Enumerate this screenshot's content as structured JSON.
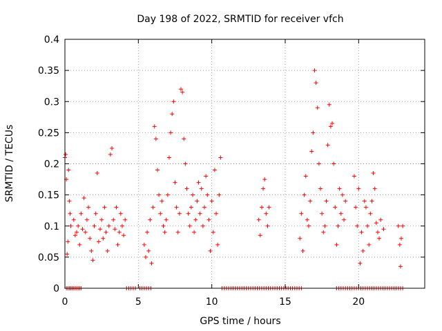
{
  "chart_data": {
    "type": "scatter",
    "title": "Day 198 of 2022, SRMTID for receiver vfch",
    "xlabel": "GPS time / hours",
    "ylabel": "SRMTID / TECUs",
    "xlim": [
      0,
      24.5
    ],
    "ylim": [
      0,
      0.4
    ],
    "x_ticks": [
      0,
      5,
      10,
      15,
      20
    ],
    "x_tick_labels": [
      "0",
      "5",
      "10",
      "15",
      "20"
    ],
    "y_ticks": [
      0,
      0.05,
      0.1,
      0.15,
      0.2,
      0.25,
      0.3,
      0.35,
      0.4
    ],
    "y_tick_labels": [
      "0",
      "0.05",
      "0.1",
      "0.15",
      "0.2",
      "0.25",
      "0.3",
      "0.35",
      "0.4"
    ],
    "grid": true,
    "marker": "+",
    "color": "#ff0000",
    "series": [
      {
        "name": "SRMTID",
        "points": [
          [
            0.0,
            0.21
          ],
          [
            0.05,
            0.215
          ],
          [
            0.1,
            0.175
          ],
          [
            0.15,
            0.055
          ],
          [
            0.2,
            0.075
          ],
          [
            0.25,
            0.19
          ],
          [
            0.3,
            0.14
          ],
          [
            0.35,
            0.12
          ],
          [
            0.4,
            0.1
          ],
          [
            0.6,
            0.11
          ],
          [
            0.7,
            0.085
          ],
          [
            0.8,
            0.09
          ],
          [
            0.9,
            0.1
          ],
          [
            1.0,
            0.07
          ],
          [
            1.1,
            0.12
          ],
          [
            1.2,
            0.095
          ],
          [
            1.3,
            0.145
          ],
          [
            1.4,
            0.09
          ],
          [
            1.5,
            0.11
          ],
          [
            1.6,
            0.13
          ],
          [
            1.7,
            0.08
          ],
          [
            1.8,
            0.06
          ],
          [
            1.9,
            0.045
          ],
          [
            2.0,
            0.1
          ],
          [
            2.1,
            0.12
          ],
          [
            2.2,
            0.185
          ],
          [
            2.3,
            0.075
          ],
          [
            2.4,
            0.095
          ],
          [
            2.5,
            0.11
          ],
          [
            2.6,
            0.08
          ],
          [
            2.7,
            0.13
          ],
          [
            2.8,
            0.09
          ],
          [
            2.9,
            0.06
          ],
          [
            3.0,
            0.1
          ],
          [
            3.1,
            0.215
          ],
          [
            3.2,
            0.225
          ],
          [
            3.3,
            0.11
          ],
          [
            3.4,
            0.095
          ],
          [
            3.5,
            0.13
          ],
          [
            3.6,
            0.07
          ],
          [
            3.7,
            0.09
          ],
          [
            3.8,
            0.12
          ],
          [
            3.9,
            0.1
          ],
          [
            4.0,
            0.085
          ],
          [
            4.1,
            0.11
          ],
          [
            5.4,
            0.07
          ],
          [
            5.5,
            0.05
          ],
          [
            5.6,
            0.09
          ],
          [
            5.7,
            0.06
          ],
          [
            5.8,
            0.11
          ],
          [
            5.9,
            0.04
          ],
          [
            6.0,
            0.13
          ],
          [
            6.1,
            0.26
          ],
          [
            6.2,
            0.24
          ],
          [
            6.3,
            0.19
          ],
          [
            6.4,
            0.15
          ],
          [
            6.5,
            0.12
          ],
          [
            6.6,
            0.14
          ],
          [
            6.7,
            0.1
          ],
          [
            6.8,
            0.09
          ],
          [
            6.9,
            0.11
          ],
          [
            7.0,
            0.15
          ],
          [
            7.1,
            0.21
          ],
          [
            7.2,
            0.25
          ],
          [
            7.3,
            0.28
          ],
          [
            7.4,
            0.3
          ],
          [
            7.5,
            0.17
          ],
          [
            7.6,
            0.13
          ],
          [
            7.7,
            0.09
          ],
          [
            7.8,
            0.12
          ],
          [
            7.9,
            0.32
          ],
          [
            8.0,
            0.315
          ],
          [
            8.1,
            0.24
          ],
          [
            8.2,
            0.2
          ],
          [
            8.3,
            0.16
          ],
          [
            8.4,
            0.12
          ],
          [
            8.5,
            0.1
          ],
          [
            8.6,
            0.13
          ],
          [
            8.7,
            0.15
          ],
          [
            8.8,
            0.09
          ],
          [
            8.9,
            0.11
          ],
          [
            9.0,
            0.14
          ],
          [
            9.1,
            0.17
          ],
          [
            9.2,
            0.12
          ],
          [
            9.3,
            0.16
          ],
          [
            9.4,
            0.1
          ],
          [
            9.5,
            0.13
          ],
          [
            9.6,
            0.18
          ],
          [
            9.7,
            0.15
          ],
          [
            9.8,
            0.11
          ],
          [
            9.9,
            0.06
          ],
          [
            10.0,
            0.14
          ],
          [
            10.1,
            0.09
          ],
          [
            10.2,
            0.19
          ],
          [
            10.3,
            0.12
          ],
          [
            10.4,
            0.07
          ],
          [
            10.5,
            0.15
          ],
          [
            10.6,
            0.21
          ],
          [
            13.2,
            0.11
          ],
          [
            13.3,
            0.085
          ],
          [
            13.4,
            0.13
          ],
          [
            13.5,
            0.16
          ],
          [
            13.6,
            0.175
          ],
          [
            13.7,
            0.12
          ],
          [
            13.8,
            0.1
          ],
          [
            13.9,
            0.13
          ],
          [
            16.0,
            0.08
          ],
          [
            16.1,
            0.12
          ],
          [
            16.2,
            0.06
          ],
          [
            16.3,
            0.15
          ],
          [
            16.4,
            0.18
          ],
          [
            16.5,
            0.11
          ],
          [
            16.6,
            0.1
          ],
          [
            16.7,
            0.14
          ],
          [
            16.8,
            0.22
          ],
          [
            16.9,
            0.25
          ],
          [
            17.0,
            0.35
          ],
          [
            17.1,
            0.33
          ],
          [
            17.2,
            0.29
          ],
          [
            17.3,
            0.2
          ],
          [
            17.4,
            0.16
          ],
          [
            17.5,
            0.12
          ],
          [
            17.6,
            0.09
          ],
          [
            17.7,
            0.1
          ],
          [
            17.8,
            0.14
          ],
          [
            17.9,
            0.23
          ],
          [
            18.0,
            0.295
          ],
          [
            18.1,
            0.26
          ],
          [
            18.2,
            0.265
          ],
          [
            18.3,
            0.2
          ],
          [
            18.4,
            0.13
          ],
          [
            18.5,
            0.07
          ],
          [
            18.6,
            0.1
          ],
          [
            18.7,
            0.16
          ],
          [
            18.8,
            0.12
          ],
          [
            18.9,
            0.15
          ],
          [
            19.0,
            0.11
          ],
          [
            19.1,
            0.14
          ],
          [
            19.7,
            0.18
          ],
          [
            19.8,
            0.13
          ],
          [
            19.9,
            0.1
          ],
          [
            20.0,
            0.16
          ],
          [
            20.1,
            0.04
          ],
          [
            20.2,
            0.09
          ],
          [
            20.3,
            0.06
          ],
          [
            20.4,
            0.14
          ],
          [
            20.5,
            0.13
          ],
          [
            20.6,
            0.1
          ],
          [
            20.7,
            0.07
          ],
          [
            20.8,
            0.12
          ],
          [
            20.9,
            0.14
          ],
          [
            21.0,
            0.185
          ],
          [
            21.1,
            0.16
          ],
          [
            21.2,
            0.105
          ],
          [
            21.3,
            0.09
          ],
          [
            21.4,
            0.08
          ],
          [
            21.5,
            0.11
          ],
          [
            21.7,
            0.095
          ],
          [
            22.7,
            0.1
          ],
          [
            22.8,
            0.07
          ],
          [
            22.85,
            0.035
          ],
          [
            22.9,
            0.08
          ],
          [
            23.0,
            0.1
          ]
        ],
        "zero_values_x": [
          0.1,
          0.2,
          0.3,
          0.4,
          0.5,
          0.6,
          0.7,
          0.8,
          0.9,
          1.0,
          1.1,
          4.2,
          4.35,
          4.5,
          4.65,
          4.8,
          5.1,
          5.25,
          5.4,
          5.55,
          5.7,
          5.85,
          10.7,
          10.85,
          11.0,
          11.15,
          11.3,
          11.45,
          11.6,
          11.75,
          11.9,
          12.05,
          12.2,
          12.35,
          12.5,
          12.65,
          12.8,
          12.95,
          13.1,
          13.25,
          13.4,
          13.55,
          13.7,
          13.85,
          14.0,
          14.15,
          14.3,
          14.45,
          14.6,
          14.75,
          14.9,
          15.05,
          15.2,
          15.35,
          15.5,
          15.65,
          15.8,
          15.95,
          16.1,
          18.5,
          18.65,
          18.8,
          18.95,
          19.1,
          19.25,
          19.4,
          19.55,
          19.7,
          19.85,
          20.0,
          20.15,
          20.3,
          20.45,
          20.6,
          20.75,
          20.9,
          21.05,
          21.2,
          21.35,
          21.5,
          21.65,
          21.8,
          21.95,
          22.1,
          22.25,
          22.4,
          22.55,
          22.7,
          22.85,
          23.0
        ]
      }
    ]
  }
}
